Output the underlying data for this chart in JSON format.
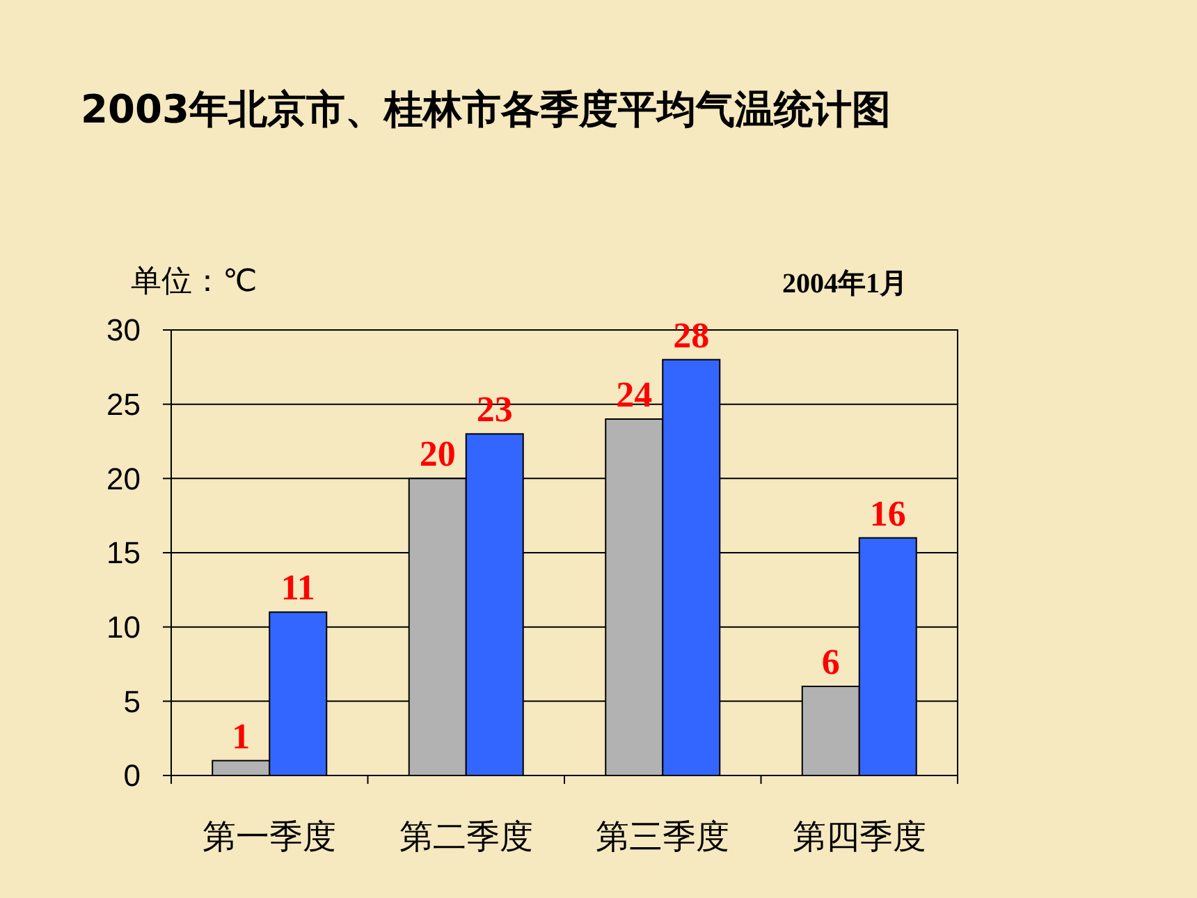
{
  "chart_data": {
    "type": "bar",
    "title": "2003年北京市、桂林市各季度平均气温统计图",
    "annotations": [
      "单位：℃",
      "2004年1月"
    ],
    "categories": [
      "第一季度",
      "第二季度",
      "第三季度",
      "第四季度"
    ],
    "series": [
      {
        "color": "#b2b2b2",
        "values": [
          1,
          20,
          24,
          6
        ]
      },
      {
        "color": "#3366ff",
        "values": [
          11,
          23,
          28,
          16
        ]
      }
    ],
    "ylim": [
      0,
      30
    ],
    "yticks": [
      0,
      5,
      10,
      15,
      20,
      25,
      30
    ],
    "grid": "y",
    "data_labels": true
  }
}
